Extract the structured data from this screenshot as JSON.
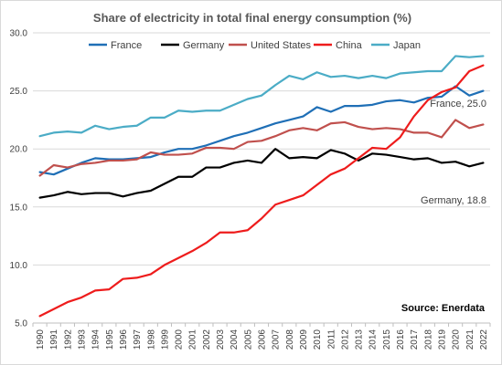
{
  "chart_data": {
    "type": "line",
    "title": "Share of electricity in total final energy consumption (%)",
    "xlabel": "",
    "ylabel": "",
    "ylim": [
      5.0,
      30.0
    ],
    "yticks": [
      "5.0",
      "10.0",
      "15.0",
      "20.0",
      "25.0",
      "30.0"
    ],
    "x": [
      "1990",
      "1991",
      "1992",
      "1993",
      "1994",
      "1995",
      "1996",
      "1997",
      "1998",
      "1999",
      "2000",
      "2001",
      "2002",
      "2003",
      "2004",
      "2005",
      "2006",
      "2007",
      "2008",
      "2009",
      "2010",
      "2011",
      "2012",
      "2013",
      "2014",
      "2015",
      "2016",
      "2017",
      "2018",
      "2019",
      "2020",
      "2021",
      "2022"
    ],
    "grid": "horizontal",
    "legend": "top",
    "series": [
      {
        "name": "France",
        "color": "#1f6fb6",
        "values": [
          18.0,
          17.8,
          18.3,
          18.8,
          19.2,
          19.1,
          19.1,
          19.2,
          19.3,
          19.7,
          20.0,
          20.0,
          20.3,
          20.7,
          21.1,
          21.4,
          21.8,
          22.2,
          22.5,
          22.8,
          23.6,
          23.2,
          23.7,
          23.7,
          23.8,
          24.1,
          24.2,
          24.0,
          24.4,
          24.5,
          25.4,
          24.6,
          25.0
        ]
      },
      {
        "name": "Germany",
        "color": "#000000",
        "values": [
          15.8,
          16.0,
          16.3,
          16.1,
          16.2,
          16.2,
          15.9,
          16.2,
          16.4,
          17.0,
          17.6,
          17.6,
          18.4,
          18.4,
          18.8,
          19.0,
          18.8,
          20.0,
          19.2,
          19.3,
          19.2,
          19.9,
          19.6,
          19.0,
          19.6,
          19.5,
          19.3,
          19.1,
          19.2,
          18.8,
          18.9,
          18.5,
          18.8
        ]
      },
      {
        "name": "United States",
        "color": "#c0504d",
        "values": [
          17.7,
          18.6,
          18.4,
          18.7,
          18.8,
          19.0,
          19.0,
          19.1,
          19.7,
          19.5,
          19.5,
          19.6,
          20.1,
          20.1,
          20.0,
          20.6,
          20.7,
          21.1,
          21.6,
          21.8,
          21.6,
          22.2,
          22.3,
          21.9,
          21.7,
          21.8,
          21.7,
          21.4,
          21.4,
          21.0,
          22.5,
          21.8,
          22.1
        ]
      },
      {
        "name": "China",
        "color": "#ee1c1c",
        "values": [
          5.6,
          6.2,
          6.8,
          7.2,
          7.8,
          7.9,
          8.8,
          8.9,
          9.2,
          10.0,
          10.6,
          11.2,
          11.9,
          12.8,
          12.8,
          13.0,
          14.0,
          15.2,
          15.6,
          16.0,
          16.9,
          17.8,
          18.3,
          19.2,
          20.1,
          20.0,
          21.0,
          22.8,
          24.2,
          24.9,
          25.3,
          26.7,
          27.2
        ]
      },
      {
        "name": "Japan",
        "color": "#4bacc6",
        "values": [
          21.1,
          21.4,
          21.5,
          21.4,
          22.0,
          21.7,
          21.9,
          22.0,
          22.7,
          22.7,
          23.3,
          23.2,
          23.3,
          23.3,
          23.8,
          24.3,
          24.6,
          25.5,
          26.3,
          26.0,
          26.6,
          26.2,
          26.3,
          26.1,
          26.3,
          26.1,
          26.5,
          26.6,
          26.7,
          26.7,
          28.0,
          27.9,
          28.0
        ]
      }
    ],
    "annotations": [
      {
        "text": "France, 25.0"
      },
      {
        "text": "Germany, 18.8"
      }
    ],
    "source": "Source: Enerdata"
  }
}
